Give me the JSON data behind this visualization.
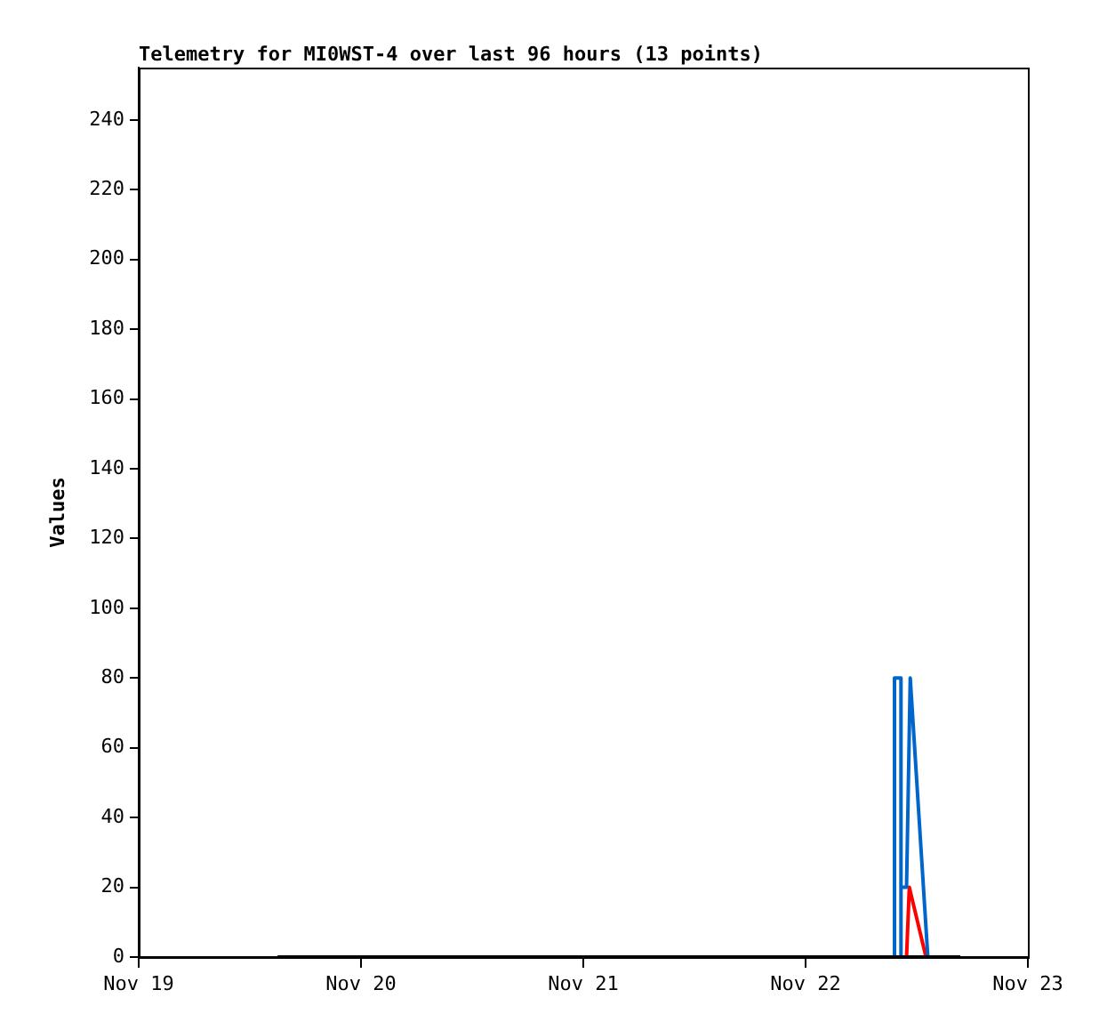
{
  "chart_data": {
    "type": "line",
    "title": "Telemetry for MI0WST-4 over last 96 hours (13 points)",
    "ylabel": "Values",
    "xlim": [
      "--11-19",
      "--11-23"
    ],
    "xticks": [
      {
        "value": "--11-19",
        "label": "Nov 19"
      },
      {
        "value": "--11-20",
        "label": "Nov 20"
      },
      {
        "value": "--11-21",
        "label": "Nov 21"
      },
      {
        "value": "--11-22",
        "label": "Nov 22"
      },
      {
        "value": "--11-23",
        "label": "Nov 23"
      }
    ],
    "ylim": [
      0,
      255
    ],
    "yticks": [
      0,
      20,
      40,
      60,
      80,
      100,
      120,
      140,
      160,
      180,
      200,
      220,
      240
    ],
    "grid": false,
    "legend": false,
    "marker": "none",
    "line_style": "solid",
    "series": [
      {
        "color": "#000000",
        "x": [
          "--11-19T15:00",
          "--11-22T16:42"
        ],
        "values": [
          0,
          0
        ]
      },
      {
        "color": "#0066cc",
        "x": [
          "--11-22T09:36",
          "--11-22T09:36",
          "--11-22T10:18",
          "--11-22T10:18"
        ],
        "values": [
          0,
          80,
          80,
          0
        ]
      },
      {
        "color": "#0066cc",
        "x": [
          "--11-22T10:24",
          "--11-22T10:54",
          "--11-22T11:18",
          "--11-22T13:12"
        ],
        "values": [
          20,
          20,
          80,
          0
        ]
      },
      {
        "color": "#ff0000",
        "x": [
          "--11-22T10:54",
          "--11-22T11:12",
          "--11-22T13:00"
        ],
        "values": [
          0,
          20,
          0
        ]
      }
    ]
  }
}
